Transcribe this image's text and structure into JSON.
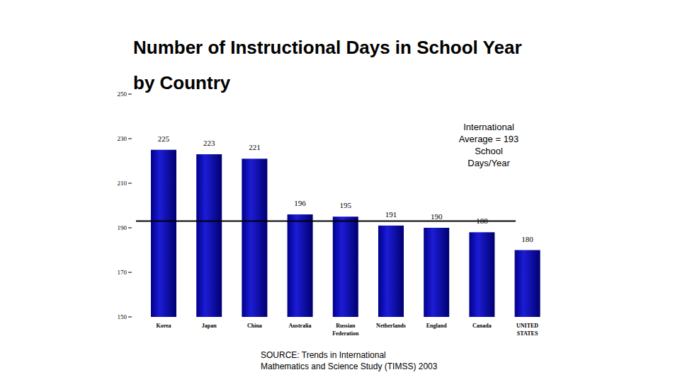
{
  "chart_data": {
    "type": "bar",
    "title": "Number of Instructional Days in School Year by Country",
    "categories": [
      "Korea",
      "Japan",
      "China",
      "Australia",
      "Russian Federation",
      "Netherlands",
      "England",
      "Canada",
      "UNITED STATES"
    ],
    "values": [
      225,
      223,
      221,
      196,
      195,
      191,
      190,
      188,
      180
    ],
    "color": "#1c1cd6",
    "ylim": [
      150,
      250
    ],
    "yticks": [
      150,
      170,
      190,
      210,
      230,
      250
    ],
    "data_labels": true,
    "grid": false,
    "reference_line": {
      "value": 193,
      "label": "International Average = 193 School Days/Year"
    },
    "source": [
      "SOURCE: Trends in International",
      "Mathematics and Science Study (TIMSS) 2003"
    ]
  }
}
